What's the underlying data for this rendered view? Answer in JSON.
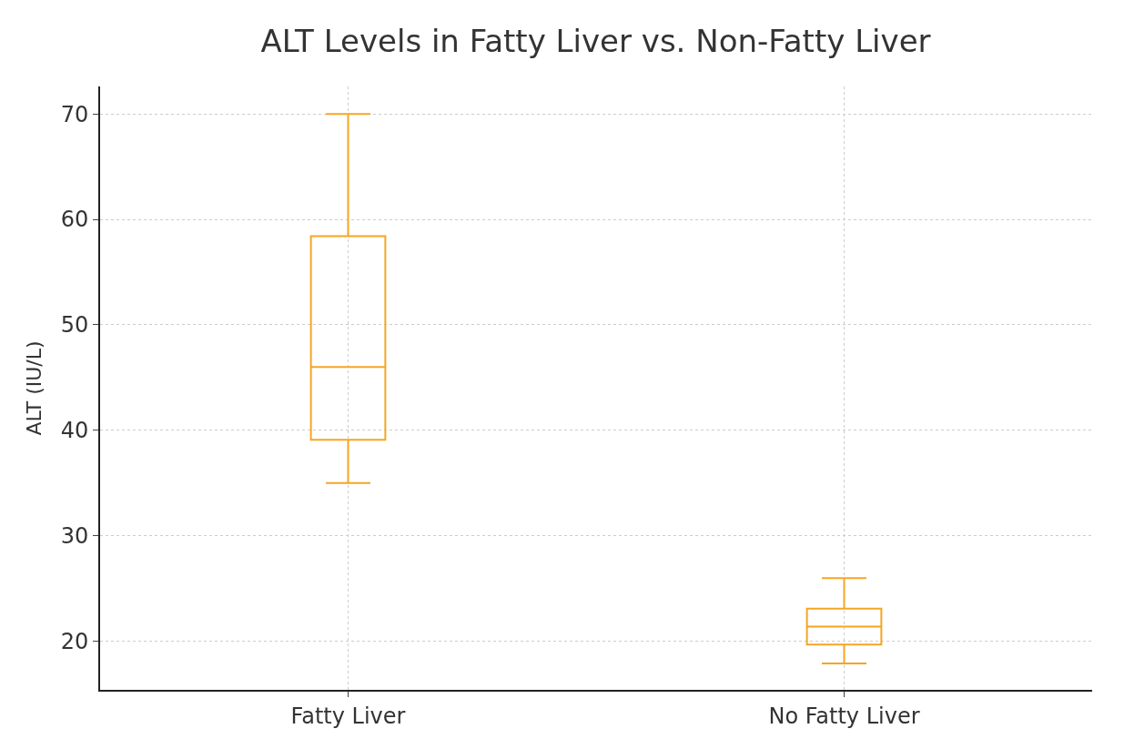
{
  "chart_data": {
    "type": "box",
    "title": "ALT Levels in Fatty Liver vs. Non-Fatty Liver",
    "ylabel": "ALT (IU/L)",
    "categories": [
      "Fatty Liver",
      "No Fatty Liver"
    ],
    "boxes": [
      {
        "low": 35,
        "q1": 39.1,
        "median": 46,
        "q3": 58.4,
        "high": 70
      },
      {
        "low": 17.9,
        "q1": 19.7,
        "median": 21.4,
        "q3": 23.1,
        "high": 26
      }
    ],
    "color": "#f5a623",
    "ylim": [
      15.4,
      72.6
    ],
    "yticks": [
      20,
      30,
      40,
      50,
      60,
      70
    ],
    "grid": true
  }
}
